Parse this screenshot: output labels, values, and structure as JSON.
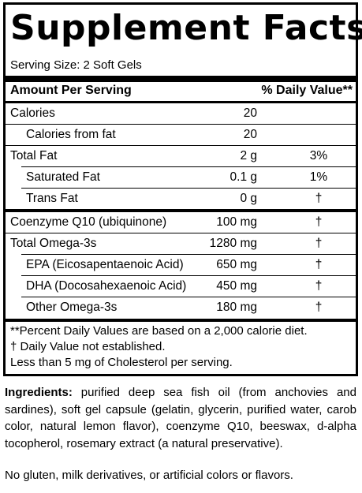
{
  "label": {
    "title": "Supplement Facts",
    "serving_size": "Serving Size: 2 Soft Gels",
    "header_amount": "Amount Per Serving",
    "header_dv": "% Daily Value**",
    "rows": [
      {
        "name": "Calories",
        "amount": "20",
        "dv": ""
      },
      {
        "name": "Calories from fat",
        "amount": "20",
        "dv": ""
      },
      {
        "name": "Total Fat",
        "amount": "2 g",
        "dv": "3%"
      },
      {
        "name": "Saturated Fat",
        "amount": "0.1 g",
        "dv": "1%"
      },
      {
        "name": "Trans Fat",
        "amount": "0 g",
        "dv": "†"
      },
      {
        "name": "Coenzyme Q10 (ubiquinone)",
        "amount": "100 mg",
        "dv": "†"
      },
      {
        "name": "Total Omega-3s",
        "amount": "1280 mg",
        "dv": "†"
      },
      {
        "name": "EPA (Eicosapentaenoic Acid)",
        "amount": "650 mg",
        "dv": "†"
      },
      {
        "name": "DHA (Docosahexaenoic Acid)",
        "amount": "450 mg",
        "dv": "†"
      },
      {
        "name": "Other Omega-3s",
        "amount": "180 mg",
        "dv": "†"
      }
    ],
    "footnotes": [
      "**Percent Daily Values are based on a 2,000 calorie diet.",
      "†  Daily Value not established.",
      "Less than 5 mg of Cholesterol per serving."
    ]
  },
  "ingredients": {
    "label": "Ingredients:",
    "text": " purified deep sea fish oil (from anchovies and sardines), soft gel capsule (gelatin, glycerin, purified water, carob color, natural lemon flavor), coenzyme Q10, beeswax, d-alpha tocopherol, rosemary extract (a natural preservative)."
  },
  "disclaimer": "No gluten, milk derivatives, or artificial colors or flavors."
}
